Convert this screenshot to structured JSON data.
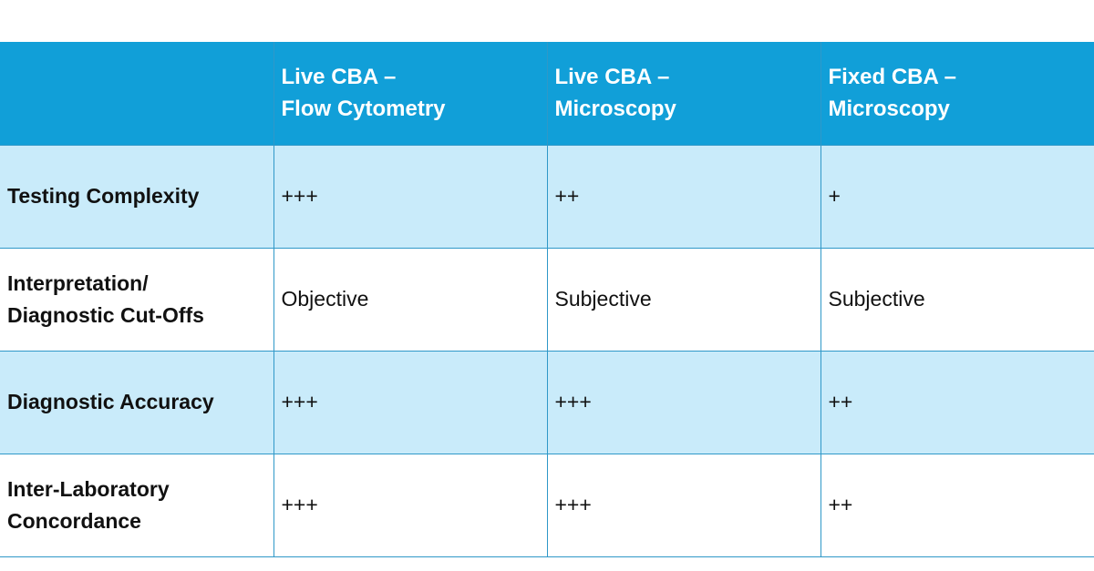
{
  "table": {
    "header": {
      "corner": "",
      "columns": [
        {
          "line1": "Live CBA –",
          "line2": "Flow Cytometry"
        },
        {
          "line1": "Live CBA –",
          "line2": "Microscopy"
        },
        {
          "line1": "Fixed CBA –",
          "line2": "Microscopy"
        }
      ]
    },
    "rows": [
      {
        "line1": "Testing Complexity",
        "line2": "",
        "values": [
          "+++",
          "++",
          "+"
        ]
      },
      {
        "line1": "Interpretation/",
        "line2": "Diagnostic Cut-Offs",
        "values": [
          "Objective",
          "Subjective",
          "Subjective"
        ]
      },
      {
        "line1": "Diagnostic Accuracy",
        "line2": "",
        "values": [
          "+++",
          "+++",
          "++"
        ]
      },
      {
        "line1": "Inter-Laboratory",
        "line2": "Concordance",
        "values": [
          "+++",
          "+++",
          "++"
        ]
      }
    ]
  },
  "colors": {
    "header_bg": "#119fd8",
    "shaded_row_bg": "#c9ebfa",
    "border": "#2f98c8"
  }
}
